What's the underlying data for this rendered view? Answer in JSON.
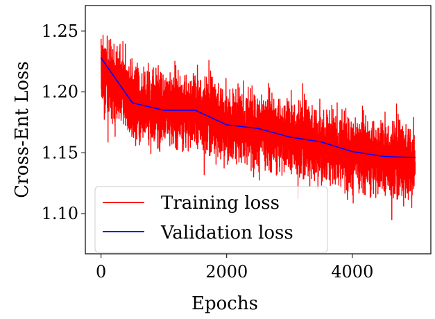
{
  "chart_data": {
    "type": "line",
    "title": "",
    "xlabel": "Epochs",
    "ylabel": "Cross-Ent Loss",
    "xlim": [
      -250,
      5250
    ],
    "ylim": [
      1.067,
      1.271
    ],
    "xticks": [
      0,
      2000,
      4000
    ],
    "xtick_labels": [
      "0",
      "2000",
      "4000"
    ],
    "yticks": [
      1.1,
      1.15,
      1.2,
      1.25
    ],
    "ytick_labels": [
      "1.10",
      "1.15",
      "1.20",
      "1.25"
    ],
    "grid": false,
    "legend_position": "lower-left",
    "series": [
      {
        "name": "Training loss",
        "color": "#ff0000",
        "style": "noisy-line",
        "x_range": [
          0,
          5000
        ],
        "num_points": 5000,
        "trend_x": [
          0,
          500,
          1000,
          1500,
          2000,
          2500,
          3000,
          3500,
          4000,
          4500,
          5000
        ],
        "trend_y": [
          1.217,
          1.192,
          1.186,
          1.184,
          1.174,
          1.169,
          1.163,
          1.157,
          1.15,
          1.145,
          1.142
        ],
        "min": 1.076,
        "max": 1.262
      },
      {
        "name": "Validation loss",
        "color": "#0000ff",
        "style": "line",
        "x": [
          0,
          500,
          1000,
          1500,
          2000,
          2500,
          3000,
          3500,
          4000,
          4500,
          5000
        ],
        "y": [
          1.228,
          1.191,
          1.185,
          1.185,
          1.173,
          1.17,
          1.163,
          1.159,
          1.151,
          1.147,
          1.146
        ]
      }
    ]
  }
}
